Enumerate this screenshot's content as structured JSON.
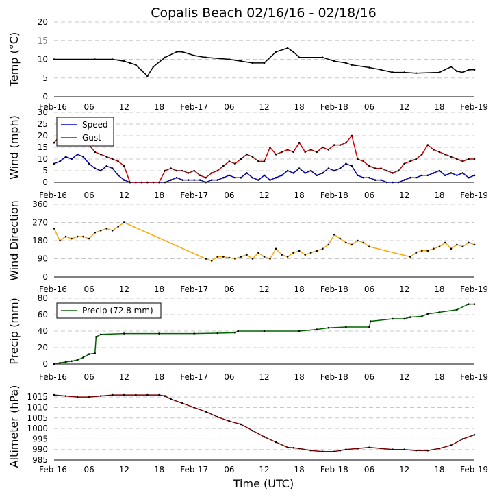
{
  "chart_data": {
    "type": "line",
    "title": "Copalis Beach 02/16/16 - 02/18/16",
    "xlabel": "Time (UTC)",
    "x_ticks": [
      "Feb-16",
      "06",
      "12",
      "18",
      "Feb-17",
      "06",
      "12",
      "18",
      "Feb-18",
      "06",
      "12",
      "18",
      "Feb-19"
    ],
    "x_range_hours": [
      0,
      72
    ],
    "panels": [
      {
        "name": "temperature",
        "ylabel": "Temp (°C)",
        "ylim": [
          0,
          20
        ],
        "yticks": [
          0,
          5,
          10,
          15,
          20
        ],
        "series": [
          {
            "name": "Temp",
            "color": "#000000",
            "x": [
              0,
              7,
              10,
              12,
              13,
              14,
              15,
              16,
              17,
              19,
              21,
              22,
              24,
              26,
              30,
              32,
              34,
              36,
              38,
              40,
              41,
              42,
              46,
              48,
              50,
              51,
              54,
              56,
              58,
              60,
              62,
              66,
              68,
              69,
              70,
              71,
              72
            ],
            "y": [
              10,
              10,
              10,
              9.5,
              9,
              8.5,
              7,
              5.5,
              8,
              10.5,
              12,
              12,
              11,
              10.5,
              10,
              9.5,
              9,
              9,
              12,
              13,
              12,
              10.5,
              10.5,
              9.5,
              9,
              8.5,
              7.8,
              7.2,
              6.5,
              6.5,
              6.3,
              6.5,
              8,
              6.8,
              6.5,
              7.2,
              7.2
            ]
          }
        ]
      },
      {
        "name": "wind",
        "ylabel": "Wind (mph)",
        "ylim": [
          0,
          30
        ],
        "yticks": [
          0,
          5,
          10,
          15,
          20,
          25,
          30
        ],
        "legend": [
          "Speed",
          "Gust"
        ],
        "series": [
          {
            "name": "Speed",
            "color": "#0000cc",
            "x": [
              0,
              1,
              2,
              3,
              4,
              5,
              6,
              7,
              8,
              9,
              10,
              11,
              12,
              13,
              14,
              15,
              16,
              17,
              18,
              19,
              20,
              21,
              22,
              23,
              24,
              25,
              26,
              27,
              28,
              29,
              30,
              31,
              32,
              33,
              34,
              35,
              36,
              37,
              38,
              39,
              40,
              41,
              42,
              43,
              44,
              45,
              46,
              47,
              48,
              49,
              50,
              51,
              52,
              53,
              54,
              55,
              56,
              57,
              58,
              59,
              60,
              61,
              62,
              63,
              64,
              65,
              66,
              67,
              68,
              69,
              70,
              71,
              72
            ],
            "y": [
              8,
              9,
              11,
              10,
              12,
              11,
              8,
              6,
              5,
              7,
              6,
              3,
              1,
              0,
              0,
              0,
              0,
              0,
              0,
              0,
              1,
              2,
              1,
              1,
              1,
              1,
              0,
              1,
              1,
              2,
              3,
              2,
              2,
              4,
              2,
              1,
              3,
              1,
              2,
              3,
              5,
              4,
              6,
              4,
              5,
              3,
              4,
              6,
              5,
              6,
              8,
              7,
              3,
              2,
              2,
              1,
              1,
              0,
              0,
              0,
              1,
              2,
              2,
              3,
              3,
              4,
              5,
              3,
              4,
              3,
              4,
              2,
              3
            ]
          },
          {
            "name": "Gust",
            "color": "#cc0000",
            "x": [
              0,
              1,
              2,
              3,
              4,
              5,
              6,
              7,
              8,
              9,
              10,
              11,
              12,
              13,
              14,
              15,
              16,
              17,
              18,
              19,
              20,
              21,
              22,
              23,
              24,
              25,
              26,
              27,
              28,
              29,
              30,
              31,
              32,
              33,
              34,
              35,
              36,
              37,
              38,
              39,
              40,
              41,
              42,
              43,
              44,
              45,
              46,
              47,
              48,
              49,
              50,
              51,
              52,
              53,
              54,
              55,
              56,
              57,
              58,
              59,
              60,
              61,
              62,
              63,
              64,
              65,
              66,
              67,
              68,
              69,
              70,
              71,
              72
            ],
            "y": [
              17,
              20,
              22,
              18,
              17,
              19,
              16,
              13,
              12,
              11,
              10,
              9,
              7,
              0,
              0,
              0,
              0,
              0,
              0,
              5,
              6,
              5,
              5,
              4,
              5,
              3,
              2,
              4,
              5,
              7,
              9,
              8,
              10,
              12,
              11,
              9,
              9,
              15,
              12,
              13,
              14,
              13,
              17,
              13,
              14,
              13,
              15,
              14,
              16,
              16,
              17,
              20,
              10,
              9,
              7,
              6,
              6,
              5,
              4,
              5,
              8,
              9,
              10,
              12,
              16,
              14,
              13,
              12,
              11,
              10,
              9,
              10,
              10
            ]
          }
        ]
      },
      {
        "name": "wind_direction",
        "ylabel": "Wind Direction",
        "ylim": [
          0,
          360
        ],
        "yticks": [
          0,
          90,
          180,
          270,
          360
        ],
        "series": [
          {
            "name": "Direction",
            "color": "#ffa500",
            "x": [
              0,
              1,
              2,
              3,
              4,
              5,
              6,
              7,
              8,
              9,
              10,
              11,
              12,
              26,
              27,
              28,
              29,
              30,
              31,
              32,
              33,
              34,
              35,
              36,
              37,
              38,
              39,
              40,
              41,
              42,
              43,
              44,
              45,
              46,
              47,
              48,
              49,
              50,
              51,
              52,
              53,
              54,
              61,
              62,
              63,
              64,
              65,
              66,
              67,
              68,
              69,
              70,
              71,
              72
            ],
            "y": [
              240,
              180,
              200,
              190,
              200,
              200,
              190,
              220,
              230,
              240,
              230,
              250,
              270,
              90,
              80,
              100,
              100,
              95,
              90,
              100,
              110,
              90,
              120,
              100,
              90,
              140,
              110,
              100,
              120,
              130,
              110,
              120,
              130,
              140,
              160,
              210,
              190,
              170,
              160,
              180,
              170,
              150,
              100,
              120,
              130,
              130,
              140,
              150,
              170,
              140,
              160,
              150,
              170,
              160
            ]
          }
        ]
      },
      {
        "name": "precipitation",
        "ylabel": "Precip (mm)",
        "ylim": [
          0,
          80
        ],
        "yticks": [
          0,
          20,
          40,
          60,
          80
        ],
        "legend": [
          "Precip (72.8 mm)"
        ],
        "series": [
          {
            "name": "Precip (72.8 mm)",
            "color": "#006400",
            "x": [
              0,
              1,
              2,
              3,
              4,
              5,
              6,
              7,
              7.2,
              8,
              12,
              18,
              24,
              28,
              31,
              31.5,
              36,
              42,
              45,
              47,
              50,
              54,
              54.2,
              58,
              60,
              61,
              63,
              64,
              66,
              69,
              71,
              72
            ],
            "y": [
              0,
              1.5,
              2.5,
              3.5,
              5,
              8,
              12,
              13,
              33,
              36,
              37,
              37,
              37,
              37.5,
              38,
              40,
              40,
              40,
              42,
              44,
              45,
              45,
              52,
              55,
              55,
              57,
              58,
              61,
              63,
              66,
              72.8,
              72.8
            ]
          }
        ]
      },
      {
        "name": "altimeter",
        "ylabel": "Altimeter (hPa)",
        "ylim": [
          985,
          1017
        ],
        "yticks": [
          985,
          990,
          995,
          1000,
          1005,
          1010,
          1015
        ],
        "series": [
          {
            "name": "Altimeter",
            "color": "#800000",
            "x": [
              0,
              2,
              4,
              6,
              8,
              10,
              12,
              14,
              16,
              18,
              19,
              20,
              22,
              24,
              26,
              28,
              30,
              32,
              34,
              36,
              38,
              40,
              41,
              42,
              44,
              46,
              48,
              49,
              50,
              52,
              54,
              56,
              58,
              60,
              62,
              64,
              66,
              68,
              70,
              72
            ],
            "y": [
              1016,
              1015.5,
              1015,
              1015,
              1015.5,
              1016,
              1016,
              1016,
              1016,
              1016,
              1015.5,
              1014,
              1012,
              1010,
              1008,
              1005.5,
              1003.5,
              1002,
              999,
              996,
              993.5,
              991,
              990.8,
              990.5,
              989.5,
              989,
              989,
              989.5,
              990,
              990.5,
              991,
              990.5,
              990,
              990,
              989.5,
              989.5,
              990.5,
              992,
              995,
              997
            ]
          }
        ]
      }
    ]
  }
}
